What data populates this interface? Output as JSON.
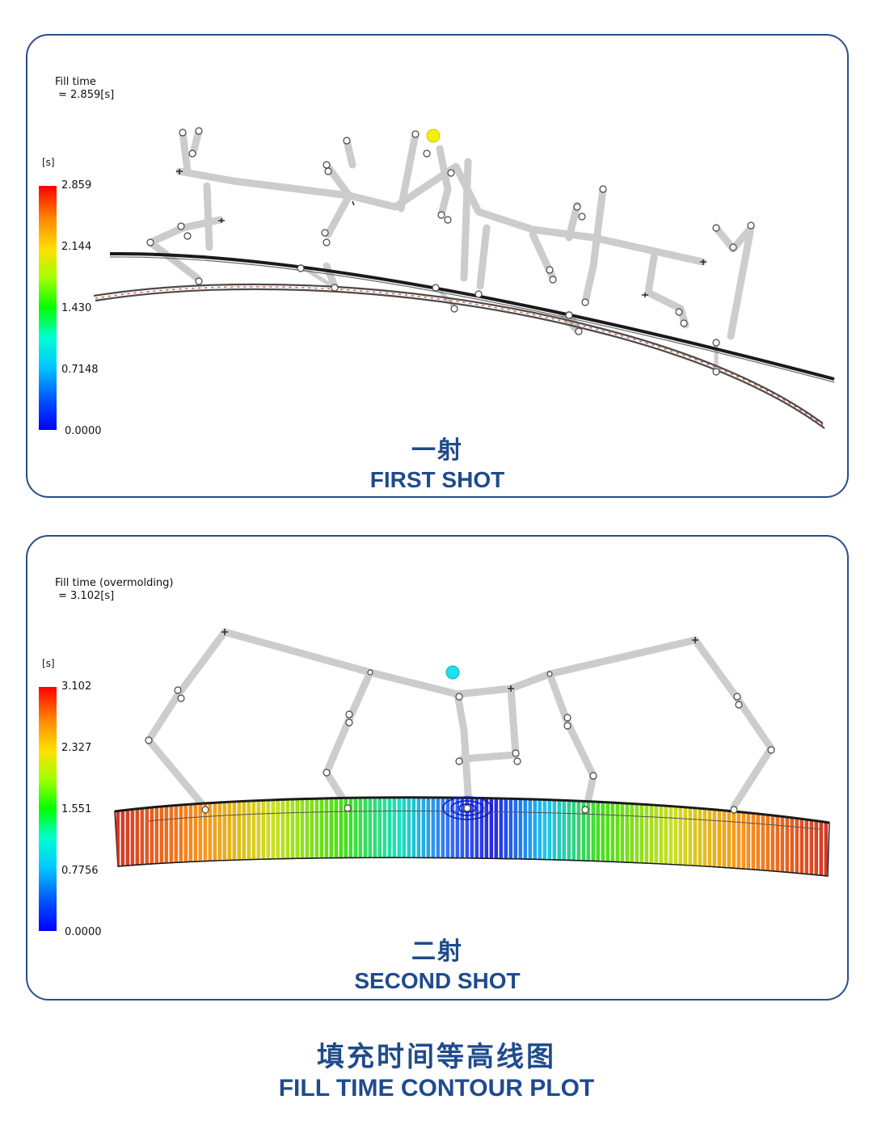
{
  "first_shot": {
    "result_name": "Fill time",
    "result_value": "= 2.859[s]",
    "unit": "[s]",
    "scale_ticks": [
      "2.859",
      "2.144",
      "1.430",
      "0.7148",
      "0.0000"
    ],
    "caption_cn": "一射",
    "caption_en": "FIRST SHOT",
    "gate_color": "#f2f200"
  },
  "second_shot": {
    "result_name": "Fill time (overmolding)",
    "result_value": "= 3.102[s]",
    "unit": "[s]",
    "scale_ticks": [
      "3.102",
      "2.327",
      "1.551",
      "0.7756",
      "0.0000"
    ],
    "caption_cn": "二射",
    "caption_en": "SECOND SHOT",
    "gate_color": "#1ee0f0"
  },
  "footer": {
    "title_cn": "填充时间等高线图",
    "title_en": "FILL TIME CONTOUR PLOT"
  },
  "colors": {
    "accent": "#1f4b8c",
    "border": "#2a4e86"
  }
}
